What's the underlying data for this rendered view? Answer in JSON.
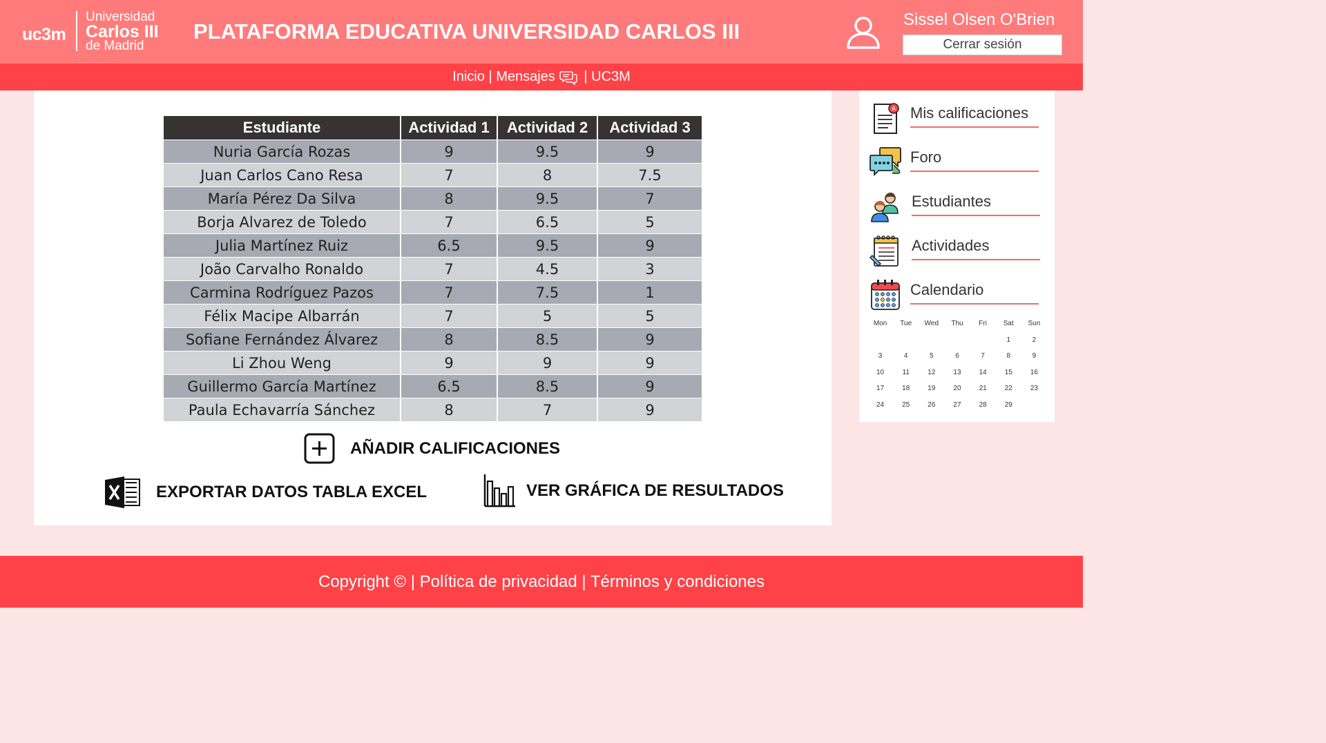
{
  "header": {
    "logo": {
      "short": "uc3m",
      "line1": "Universidad",
      "line2": "Carlos III",
      "line3": "de Madrid"
    },
    "title": "PLATAFORMA EDUCATIVA UNIVERSIDAD CARLOS III",
    "user_name": "Sissel Olsen O'Brien",
    "logout_label": "Cerrar sesión"
  },
  "nav": {
    "inicio": "Inicio",
    "sep1": " | ",
    "mensajes": "Mensajes",
    "sep2": " | ",
    "uc3m": "UC3M"
  },
  "grades_table": {
    "columns": [
      "Estudiante",
      "Actividad 1",
      "Actividad 2",
      "Actividad 3"
    ],
    "rows": [
      [
        "Nuria García Rozas",
        "9",
        "9.5",
        "9"
      ],
      [
        "Juan Carlos Cano Resa",
        "7",
        "8",
        "7.5"
      ],
      [
        "María Pérez Da Silva",
        "8",
        "9.5",
        "7"
      ],
      [
        "Borja Alvarez de Toledo",
        "7",
        "6.5",
        "5"
      ],
      [
        "Julia Martínez Ruiz",
        "6.5",
        "9.5",
        "9"
      ],
      [
        "João Carvalho Ronaldo",
        "7",
        "4.5",
        "3"
      ],
      [
        "Carmina Rodríguez Pazos",
        "7",
        "7.5",
        "1"
      ],
      [
        "Félix Macipe Albarrán",
        "7",
        "5",
        "5"
      ],
      [
        "Sofiane Fernández Álvarez",
        "8",
        "8.5",
        "9"
      ],
      [
        "Li Zhou Weng",
        "9",
        "9",
        "9"
      ],
      [
        "Guillermo García Martínez",
        "6.5",
        "8.5",
        "9"
      ],
      [
        "Paula Echavarría Sánchez",
        "8",
        "7",
        "9"
      ]
    ]
  },
  "actions": {
    "add": "AÑADIR CALIFICACIONES",
    "export": "EXPORTAR DATOS TABLA EXCEL",
    "chart": "VER GRÁFICA DE RESULTADOS"
  },
  "sidebar": {
    "items": [
      {
        "label": "Mis calificaciones",
        "icon": "grades-document-icon"
      },
      {
        "label": "Foro",
        "icon": "chat-bubbles-icon"
      },
      {
        "label": "Estudiantes",
        "icon": "students-icon"
      },
      {
        "label": "Actividades",
        "icon": "notepad-icon"
      },
      {
        "label": "Calendario",
        "icon": "calendar-icon"
      }
    ]
  },
  "calendar": {
    "days": [
      "Mon",
      "Tue",
      "Wed",
      "Thu",
      "Fri",
      "Sat",
      "Sun"
    ],
    "weeks": [
      [
        "",
        "",
        "",
        "",
        "",
        "1",
        "2"
      ],
      [
        "3",
        "4",
        "5",
        "6",
        "7",
        "8",
        "9"
      ],
      [
        "10",
        "11",
        "12",
        "13",
        "14",
        "15",
        "16"
      ],
      [
        "17",
        "18",
        "19",
        "20",
        "21",
        "22",
        "23"
      ],
      [
        "24",
        "25",
        "26",
        "27",
        "28",
        "29",
        ""
      ]
    ]
  },
  "footer": {
    "text": "Copyright © | Política de privacidad | Términos y condiciones"
  },
  "colors": {
    "header": "#ff7b7b",
    "nav": "#ff4247",
    "background": "#fde4e5",
    "table_header": "#373333",
    "row_dark": "#a7aab3",
    "row_light": "#d1d3d6",
    "accent_line": "#f26a6c"
  }
}
